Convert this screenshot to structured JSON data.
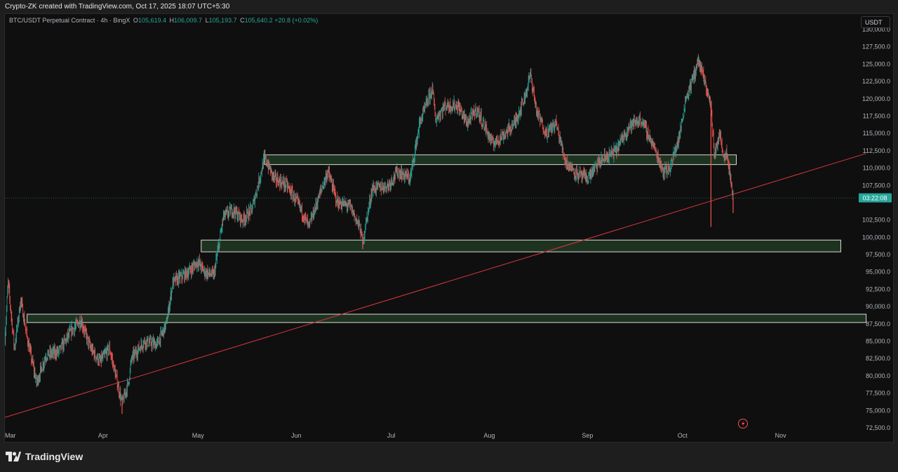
{
  "header": {
    "credit": "Crypto-ZK created with TradingView.com, Oct 17, 2025 18:07 UTC+5:30"
  },
  "legend": {
    "symbol": "BTC/USDT Perpetual Contract · 4h · BingX",
    "open_label": "O",
    "open": "105,619.4",
    "high_label": "H",
    "high": "106,009.7",
    "low_label": "L",
    "low": "105,193.7",
    "close_label": "C",
    "close": "105,640.2",
    "change": "+20.8 (+0.02%)"
  },
  "currency_button": "USDT",
  "countdown": "03:22:08",
  "footer": {
    "brand": "TradingView"
  },
  "colors": {
    "up": "#26a69a",
    "down": "#ef5350",
    "trendline": "#d9363e",
    "zone_fill": "#1f3520",
    "zone_stroke": "#e6e6e6",
    "background": "#0f0f0f"
  },
  "chart_data": {
    "type": "candlestick",
    "timeframe": "4h",
    "x_ticks": [
      "Mar",
      "Apr",
      "May",
      "Jun",
      "Jul",
      "Aug",
      "Sep",
      "Oct",
      "Nov"
    ],
    "x_range": [
      "2025-03-01",
      "2025-11-25"
    ],
    "ylim": [
      72500,
      130000
    ],
    "y_ticks": [
      "130,000.0",
      "127,500.0",
      "125,000.0",
      "122,500.0",
      "120,000.0",
      "117,500.0",
      "115,000.0",
      "112,500.0",
      "110,000.0",
      "107,500.0",
      "102,500.0",
      "100,000.0",
      "97,500.0",
      "95,000.0",
      "92,500.0",
      "90,000.0",
      "87,500.0",
      "85,000.0",
      "82,500.0",
      "80,000.0",
      "77,500.0",
      "75,000.0",
      "72,500.0"
    ],
    "current_price": 105640.2,
    "price_path": [
      [
        "2025-03-01",
        85500
      ],
      [
        "2025-03-02",
        93500
      ],
      [
        "2025-03-04",
        84000
      ],
      [
        "2025-03-06",
        91000
      ],
      [
        "2025-03-08",
        85500
      ],
      [
        "2025-03-11",
        79000
      ],
      [
        "2025-03-14",
        83000
      ],
      [
        "2025-03-18",
        83500
      ],
      [
        "2025-03-22",
        86500
      ],
      [
        "2025-03-25",
        88000
      ],
      [
        "2025-03-28",
        84000
      ],
      [
        "2025-03-31",
        82000
      ],
      [
        "2025-04-03",
        84000
      ],
      [
        "2025-04-07",
        76000
      ],
      [
        "2025-04-09",
        79000
      ],
      [
        "2025-04-10",
        82500
      ],
      [
        "2025-04-14",
        85000
      ],
      [
        "2025-04-18",
        84500
      ],
      [
        "2025-04-21",
        87500
      ],
      [
        "2025-04-23",
        93500
      ],
      [
        "2025-04-28",
        95000
      ],
      [
        "2025-05-01",
        96500
      ],
      [
        "2025-05-03",
        95000
      ],
      [
        "2025-05-06",
        94500
      ],
      [
        "2025-05-09",
        103000
      ],
      [
        "2025-05-12",
        104000
      ],
      [
        "2025-05-15",
        102500
      ],
      [
        "2025-05-18",
        104000
      ],
      [
        "2025-05-22",
        111500
      ],
      [
        "2025-05-25",
        108500
      ],
      [
        "2025-05-29",
        107500
      ],
      [
        "2025-06-02",
        104500
      ],
      [
        "2025-06-05",
        101500
      ],
      [
        "2025-06-09",
        107000
      ],
      [
        "2025-06-11",
        109500
      ],
      [
        "2025-06-14",
        105000
      ],
      [
        "2025-06-18",
        104500
      ],
      [
        "2025-06-21",
        101500
      ],
      [
        "2025-06-22",
        99500
      ],
      [
        "2025-06-25",
        107000
      ],
      [
        "2025-06-30",
        107500
      ],
      [
        "2025-07-03",
        109500
      ],
      [
        "2025-07-07",
        108500
      ],
      [
        "2025-07-10",
        116500
      ],
      [
        "2025-07-14",
        121500
      ],
      [
        "2025-07-15",
        117000
      ],
      [
        "2025-07-18",
        119000
      ],
      [
        "2025-07-22",
        119000
      ],
      [
        "2025-07-25",
        116500
      ],
      [
        "2025-07-28",
        118500
      ],
      [
        "2025-08-02",
        113500
      ],
      [
        "2025-08-06",
        115000
      ],
      [
        "2025-08-09",
        116500
      ],
      [
        "2025-08-12",
        120000
      ],
      [
        "2025-08-14",
        123500
      ],
      [
        "2025-08-16",
        118000
      ],
      [
        "2025-08-19",
        115000
      ],
      [
        "2025-08-22",
        116500
      ],
      [
        "2025-08-25",
        111000
      ],
      [
        "2025-08-29",
        109000
      ],
      [
        "2025-09-01",
        108500
      ],
      [
        "2025-09-05",
        111000
      ],
      [
        "2025-09-10",
        112500
      ],
      [
        "2025-09-14",
        116000
      ],
      [
        "2025-09-18",
        117000
      ],
      [
        "2025-09-22",
        113000
      ],
      [
        "2025-09-25",
        109500
      ],
      [
        "2025-09-27",
        110000
      ],
      [
        "2025-09-30",
        114500
      ],
      [
        "2025-10-02",
        120000
      ],
      [
        "2025-10-04",
        122500
      ],
      [
        "2025-10-06",
        125500
      ],
      [
        "2025-10-08",
        122500
      ],
      [
        "2025-10-10",
        119000
      ],
      [
        "2025-10-11",
        112000
      ],
      [
        "2025-10-13",
        115000
      ],
      [
        "2025-10-14",
        111500
      ],
      [
        "2025-10-15",
        112500
      ],
      [
        "2025-10-16",
        109000
      ],
      [
        "2025-10-17",
        105640
      ]
    ],
    "candle_extremes": [
      [
        "2025-10-10",
        101500
      ],
      [
        "2025-10-17",
        103500
      ],
      [
        "2025-06-22",
        98300
      ],
      [
        "2025-04-07",
        74500
      ],
      [
        "2025-10-06",
        126200
      ]
    ],
    "zones": [
      {
        "from": "2025-05-22",
        "to": "2025-10-18",
        "low": 110500,
        "high": 111900
      },
      {
        "from": "2025-05-02",
        "to": "2025-11-20",
        "low": 97900,
        "high": 99600
      },
      {
        "from": "2025-03-08",
        "to": "2025-11-28",
        "low": 87700,
        "high": 88900
      }
    ],
    "trendline": {
      "from": [
        "2025-03-01",
        74000
      ],
      "to": [
        "2025-11-28",
        112100
      ]
    },
    "grid": false
  }
}
